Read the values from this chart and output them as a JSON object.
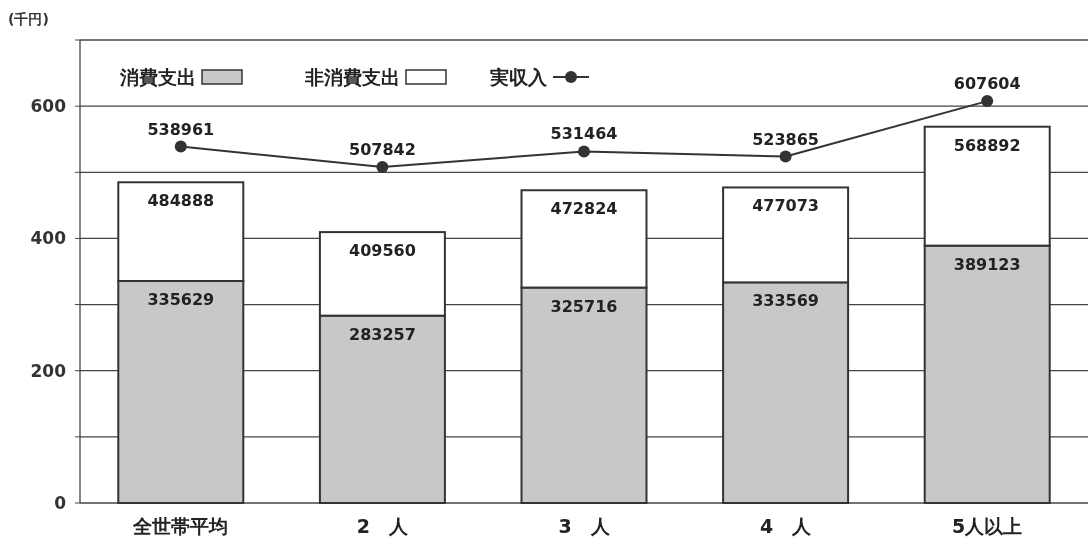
{
  "chart_data": {
    "type": "bar",
    "stacked": true,
    "ylabel": "(千円)",
    "categories": [
      "全世帯平均",
      "2　人",
      "3　人",
      "4　人",
      "5人以上"
    ],
    "series": [
      {
        "name": "消費支出",
        "color": "#c8c8c8",
        "values": [
          335.629,
          283.257,
          325.716,
          333.569,
          389.123
        ]
      },
      {
        "name": "非消費支出",
        "color": "#ffffff",
        "values": [
          149.259,
          126.303,
          147.108,
          143.504,
          179.769
        ]
      },
      {
        "name": "実収入",
        "type": "line",
        "color": "#333333",
        "marker": "circle",
        "values": [
          538.961,
          507.842,
          531.464,
          523.865,
          607.604
        ]
      }
    ],
    "annotations": [
      {
        "text": "335629",
        "x": "全世帯平均",
        "y": 335.629
      },
      {
        "text": "283257",
        "x": "2　人",
        "y": 283.257
      },
      {
        "text": "325716",
        "x": "3　人",
        "y": 325.716
      },
      {
        "text": "333569",
        "x": "4　人",
        "y": 333.569
      },
      {
        "text": "389123",
        "x": "5人以上",
        "y": 389.123
      },
      {
        "text": "484888",
        "x": "全世帯平均",
        "y": 484.888
      },
      {
        "text": "409560",
        "x": "2　人",
        "y": 409.56
      },
      {
        "text": "472824",
        "x": "3　人",
        "y": 472.824
      },
      {
        "text": "477073",
        "x": "4　人",
        "y": 477.073
      },
      {
        "text": "568892",
        "x": "5人以上",
        "y": 568.892
      },
      {
        "text": "538961",
        "x": "全世帯平均",
        "y": 538.961
      },
      {
        "text": "507842",
        "x": "2　人",
        "y": 507.842
      },
      {
        "text": "531464",
        "x": "3　人",
        "y": 531.464
      },
      {
        "text": "523865",
        "x": "4　人",
        "y": 523.865
      },
      {
        "text": "607604",
        "x": "5人以上",
        "y": 607.604
      }
    ],
    "ylim": [
      0,
      700
    ],
    "yticks": [
      0,
      {
        "value": 100,
        "label": null
      },
      200,
      {
        "value": 300,
        "label": null
      },
      400,
      {
        "value": 500,
        "label": null
      },
      600,
      {
        "value": 700,
        "label": null
      }
    ],
    "grid": "y",
    "legend": "top left"
  }
}
